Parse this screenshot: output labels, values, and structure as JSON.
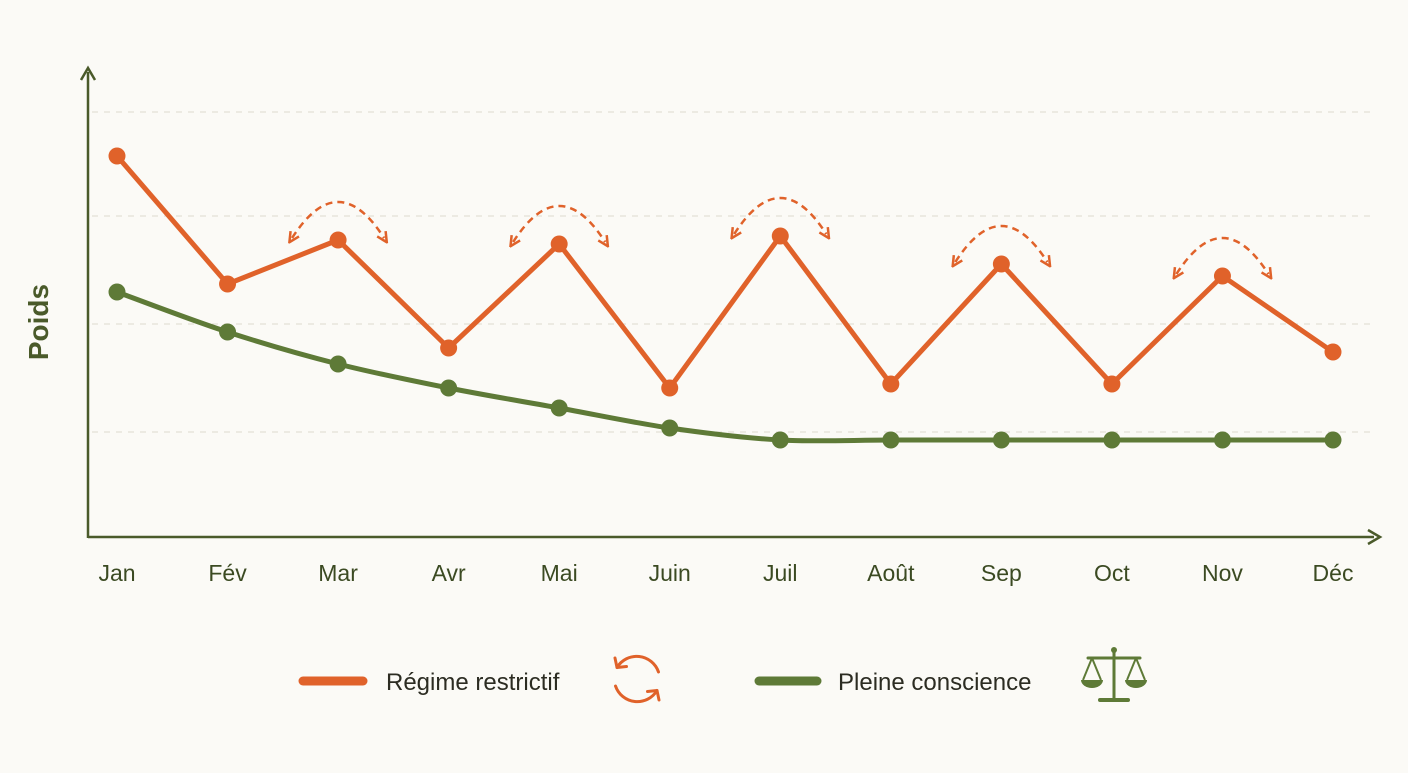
{
  "chart_data": {
    "type": "line",
    "title": "",
    "xlabel": "",
    "ylabel": "Poids",
    "categories": [
      "Jan",
      "Fév",
      "Mar",
      "Avr",
      "Mai",
      "Juin",
      "Juil",
      "Août",
      "Sep",
      "Oct",
      "Nov",
      "Déc"
    ],
    "ylim": [
      0,
      100
    ],
    "grid": true,
    "legend_position": "bottom",
    "series": [
      {
        "name": "Régime restrictif",
        "color": "#e0622a",
        "icon": "cycle-arrows-icon",
        "values": [
          89,
          57,
          68,
          41,
          67,
          31,
          69,
          32,
          62,
          32,
          59,
          40
        ]
      },
      {
        "name": "Pleine conscience",
        "color": "#5e7a37",
        "icon": "balance-scale-icon",
        "values": [
          55,
          45,
          37,
          31,
          26,
          21,
          18,
          18,
          18,
          18,
          18,
          18
        ]
      }
    ],
    "annotations": [
      {
        "type": "rebound-arc",
        "series": 0,
        "at": 2,
        "icon": "dashed-arc-arrow-icon"
      },
      {
        "type": "rebound-arc",
        "series": 0,
        "at": 4,
        "icon": "dashed-arc-arrow-icon"
      },
      {
        "type": "rebound-arc",
        "series": 0,
        "at": 6,
        "icon": "dashed-arc-arrow-icon"
      },
      {
        "type": "rebound-arc",
        "series": 0,
        "at": 8,
        "icon": "dashed-arc-arrow-icon"
      },
      {
        "type": "rebound-arc",
        "series": 0,
        "at": 10,
        "icon": "dashed-arc-arrow-icon"
      }
    ]
  }
}
